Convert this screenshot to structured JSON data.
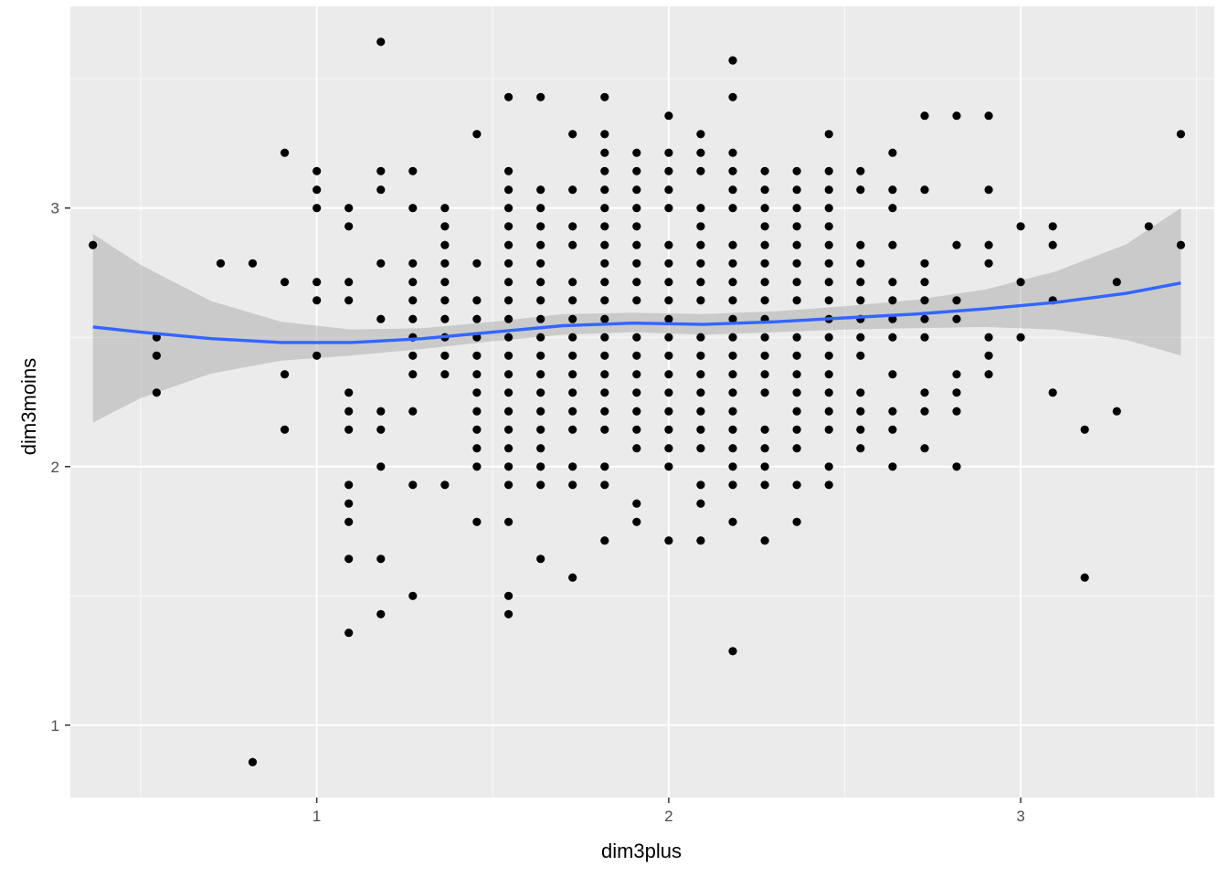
{
  "chart_data": {
    "type": "scatter",
    "title": "",
    "xlabel": "dim3plus",
    "ylabel": "dim3moins",
    "xlim": [
      0.3,
      3.55
    ],
    "ylim": [
      0.72,
      3.78
    ],
    "x_ticks": [
      1,
      2,
      3
    ],
    "y_ticks": [
      1,
      2,
      3
    ],
    "x_tick_labels": [
      "1",
      "2",
      "3"
    ],
    "y_tick_labels": [
      "1",
      "2",
      "3"
    ],
    "grid": true,
    "legend": "none",
    "colors": {
      "panel": "#ebebeb",
      "grid_major": "#ffffff",
      "grid_minor": "#f7f7f7",
      "point": "#000000",
      "smooth_line": "#3366ff",
      "ribbon": "#999999"
    },
    "points": [
      [
        0.364,
        2.857
      ],
      [
        0.545,
        2.5
      ],
      [
        0.545,
        2.429
      ],
      [
        0.545,
        2.286
      ],
      [
        0.727,
        2.786
      ],
      [
        0.818,
        2.786
      ],
      [
        0.818,
        0.857
      ],
      [
        0.909,
        3.214
      ],
      [
        0.909,
        2.714
      ],
      [
        0.909,
        2.357
      ],
      [
        0.909,
        2.143
      ],
      [
        1.0,
        3.143
      ],
      [
        1.0,
        3.071
      ],
      [
        1.0,
        3.0
      ],
      [
        1.0,
        2.714
      ],
      [
        1.0,
        2.643
      ],
      [
        1.0,
        2.429
      ],
      [
        1.091,
        3.0
      ],
      [
        1.091,
        2.929
      ],
      [
        1.091,
        2.714
      ],
      [
        1.091,
        2.643
      ],
      [
        1.091,
        2.286
      ],
      [
        1.091,
        2.214
      ],
      [
        1.091,
        2.143
      ],
      [
        1.091,
        1.929
      ],
      [
        1.091,
        1.857
      ],
      [
        1.091,
        1.786
      ],
      [
        1.091,
        1.643
      ],
      [
        1.091,
        1.357
      ],
      [
        1.182,
        3.643
      ],
      [
        1.182,
        3.143
      ],
      [
        1.182,
        3.071
      ],
      [
        1.182,
        2.786
      ],
      [
        1.182,
        2.571
      ],
      [
        1.182,
        2.214
      ],
      [
        1.182,
        2.143
      ],
      [
        1.182,
        2.0
      ],
      [
        1.182,
        1.643
      ],
      [
        1.182,
        1.429
      ],
      [
        1.273,
        3.143
      ],
      [
        1.273,
        3.0
      ],
      [
        1.273,
        2.786
      ],
      [
        1.273,
        2.714
      ],
      [
        1.273,
        2.643
      ],
      [
        1.273,
        2.571
      ],
      [
        1.273,
        2.5
      ],
      [
        1.273,
        2.429
      ],
      [
        1.273,
        2.357
      ],
      [
        1.273,
        2.214
      ],
      [
        1.273,
        1.929
      ],
      [
        1.273,
        1.5
      ],
      [
        1.364,
        3.0
      ],
      [
        1.364,
        2.929
      ],
      [
        1.364,
        2.857
      ],
      [
        1.364,
        2.786
      ],
      [
        1.364,
        2.714
      ],
      [
        1.364,
        2.643
      ],
      [
        1.364,
        2.571
      ],
      [
        1.364,
        2.5
      ],
      [
        1.364,
        2.429
      ],
      [
        1.364,
        2.357
      ],
      [
        1.364,
        1.929
      ],
      [
        1.455,
        3.286
      ],
      [
        1.455,
        2.786
      ],
      [
        1.455,
        2.643
      ],
      [
        1.455,
        2.571
      ],
      [
        1.455,
        2.5
      ],
      [
        1.455,
        2.429
      ],
      [
        1.455,
        2.357
      ],
      [
        1.455,
        2.286
      ],
      [
        1.455,
        2.214
      ],
      [
        1.455,
        2.143
      ],
      [
        1.455,
        2.071
      ],
      [
        1.455,
        2.0
      ],
      [
        1.455,
        1.786
      ],
      [
        1.545,
        3.429
      ],
      [
        1.545,
        3.143
      ],
      [
        1.545,
        3.071
      ],
      [
        1.545,
        3.0
      ],
      [
        1.545,
        2.929
      ],
      [
        1.545,
        2.857
      ],
      [
        1.545,
        2.786
      ],
      [
        1.545,
        2.714
      ],
      [
        1.545,
        2.643
      ],
      [
        1.545,
        2.571
      ],
      [
        1.545,
        2.5
      ],
      [
        1.545,
        2.429
      ],
      [
        1.545,
        2.357
      ],
      [
        1.545,
        2.286
      ],
      [
        1.545,
        2.214
      ],
      [
        1.545,
        2.143
      ],
      [
        1.545,
        2.071
      ],
      [
        1.545,
        2.0
      ],
      [
        1.545,
        1.929
      ],
      [
        1.545,
        1.786
      ],
      [
        1.545,
        1.5
      ],
      [
        1.545,
        1.429
      ],
      [
        1.636,
        3.429
      ],
      [
        1.636,
        3.071
      ],
      [
        1.636,
        3.0
      ],
      [
        1.636,
        2.929
      ],
      [
        1.636,
        2.857
      ],
      [
        1.636,
        2.786
      ],
      [
        1.636,
        2.714
      ],
      [
        1.636,
        2.643
      ],
      [
        1.636,
        2.571
      ],
      [
        1.636,
        2.5
      ],
      [
        1.636,
        2.429
      ],
      [
        1.636,
        2.357
      ],
      [
        1.636,
        2.286
      ],
      [
        1.636,
        2.214
      ],
      [
        1.636,
        2.143
      ],
      [
        1.636,
        2.071
      ],
      [
        1.636,
        2.0
      ],
      [
        1.636,
        1.929
      ],
      [
        1.636,
        1.643
      ],
      [
        1.727,
        3.286
      ],
      [
        1.727,
        3.071
      ],
      [
        1.727,
        2.929
      ],
      [
        1.727,
        2.857
      ],
      [
        1.727,
        2.714
      ],
      [
        1.727,
        2.643
      ],
      [
        1.727,
        2.571
      ],
      [
        1.727,
        2.5
      ],
      [
        1.727,
        2.429
      ],
      [
        1.727,
        2.357
      ],
      [
        1.727,
        2.286
      ],
      [
        1.727,
        2.214
      ],
      [
        1.727,
        2.143
      ],
      [
        1.727,
        2.0
      ],
      [
        1.727,
        1.929
      ],
      [
        1.727,
        1.571
      ],
      [
        1.818,
        3.429
      ],
      [
        1.818,
        3.286
      ],
      [
        1.818,
        3.214
      ],
      [
        1.818,
        3.143
      ],
      [
        1.818,
        3.071
      ],
      [
        1.818,
        3.0
      ],
      [
        1.818,
        2.929
      ],
      [
        1.818,
        2.857
      ],
      [
        1.818,
        2.786
      ],
      [
        1.818,
        2.714
      ],
      [
        1.818,
        2.643
      ],
      [
        1.818,
        2.571
      ],
      [
        1.818,
        2.5
      ],
      [
        1.818,
        2.429
      ],
      [
        1.818,
        2.357
      ],
      [
        1.818,
        2.286
      ],
      [
        1.818,
        2.214
      ],
      [
        1.818,
        2.143
      ],
      [
        1.818,
        2.0
      ],
      [
        1.818,
        1.929
      ],
      [
        1.818,
        1.714
      ],
      [
        1.909,
        3.214
      ],
      [
        1.909,
        3.143
      ],
      [
        1.909,
        3.071
      ],
      [
        1.909,
        3.0
      ],
      [
        1.909,
        2.929
      ],
      [
        1.909,
        2.857
      ],
      [
        1.909,
        2.786
      ],
      [
        1.909,
        2.714
      ],
      [
        1.909,
        2.643
      ],
      [
        1.909,
        2.5
      ],
      [
        1.909,
        2.429
      ],
      [
        1.909,
        2.357
      ],
      [
        1.909,
        2.286
      ],
      [
        1.909,
        2.214
      ],
      [
        1.909,
        2.143
      ],
      [
        1.909,
        2.071
      ],
      [
        1.909,
        1.857
      ],
      [
        1.909,
        1.786
      ],
      [
        2.0,
        3.357
      ],
      [
        2.0,
        3.214
      ],
      [
        2.0,
        3.143
      ],
      [
        2.0,
        3.071
      ],
      [
        2.0,
        3.0
      ],
      [
        2.0,
        2.857
      ],
      [
        2.0,
        2.786
      ],
      [
        2.0,
        2.714
      ],
      [
        2.0,
        2.643
      ],
      [
        2.0,
        2.571
      ],
      [
        2.0,
        2.5
      ],
      [
        2.0,
        2.429
      ],
      [
        2.0,
        2.357
      ],
      [
        2.0,
        2.286
      ],
      [
        2.0,
        2.214
      ],
      [
        2.0,
        2.143
      ],
      [
        2.0,
        2.071
      ],
      [
        2.0,
        2.0
      ],
      [
        2.0,
        1.714
      ],
      [
        2.091,
        3.286
      ],
      [
        2.091,
        3.214
      ],
      [
        2.091,
        3.143
      ],
      [
        2.091,
        3.0
      ],
      [
        2.091,
        2.929
      ],
      [
        2.091,
        2.857
      ],
      [
        2.091,
        2.786
      ],
      [
        2.091,
        2.714
      ],
      [
        2.091,
        2.643
      ],
      [
        2.091,
        2.5
      ],
      [
        2.091,
        2.429
      ],
      [
        2.091,
        2.357
      ],
      [
        2.091,
        2.286
      ],
      [
        2.091,
        2.214
      ],
      [
        2.091,
        2.143
      ],
      [
        2.091,
        2.071
      ],
      [
        2.091,
        1.929
      ],
      [
        2.091,
        1.857
      ],
      [
        2.091,
        1.714
      ],
      [
        2.182,
        3.571
      ],
      [
        2.182,
        3.429
      ],
      [
        2.182,
        3.214
      ],
      [
        2.182,
        3.143
      ],
      [
        2.182,
        3.071
      ],
      [
        2.182,
        3.0
      ],
      [
        2.182,
        2.857
      ],
      [
        2.182,
        2.786
      ],
      [
        2.182,
        2.714
      ],
      [
        2.182,
        2.643
      ],
      [
        2.182,
        2.571
      ],
      [
        2.182,
        2.5
      ],
      [
        2.182,
        2.429
      ],
      [
        2.182,
        2.357
      ],
      [
        2.182,
        2.286
      ],
      [
        2.182,
        2.214
      ],
      [
        2.182,
        2.143
      ],
      [
        2.182,
        2.071
      ],
      [
        2.182,
        2.0
      ],
      [
        2.182,
        1.929
      ],
      [
        2.182,
        1.786
      ],
      [
        2.182,
        1.286
      ],
      [
        2.273,
        3.143
      ],
      [
        2.273,
        3.071
      ],
      [
        2.273,
        3.0
      ],
      [
        2.273,
        2.929
      ],
      [
        2.273,
        2.857
      ],
      [
        2.273,
        2.786
      ],
      [
        2.273,
        2.714
      ],
      [
        2.273,
        2.643
      ],
      [
        2.273,
        2.571
      ],
      [
        2.273,
        2.5
      ],
      [
        2.273,
        2.429
      ],
      [
        2.273,
        2.357
      ],
      [
        2.273,
        2.286
      ],
      [
        2.273,
        2.143
      ],
      [
        2.273,
        2.071
      ],
      [
        2.273,
        2.0
      ],
      [
        2.273,
        1.929
      ],
      [
        2.273,
        1.714
      ],
      [
        2.364,
        3.143
      ],
      [
        2.364,
        3.071
      ],
      [
        2.364,
        3.0
      ],
      [
        2.364,
        2.929
      ],
      [
        2.364,
        2.857
      ],
      [
        2.364,
        2.786
      ],
      [
        2.364,
        2.714
      ],
      [
        2.364,
        2.643
      ],
      [
        2.364,
        2.5
      ],
      [
        2.364,
        2.429
      ],
      [
        2.364,
        2.357
      ],
      [
        2.364,
        2.286
      ],
      [
        2.364,
        2.214
      ],
      [
        2.364,
        2.143
      ],
      [
        2.364,
        2.071
      ],
      [
        2.364,
        1.929
      ],
      [
        2.364,
        1.786
      ],
      [
        2.455,
        3.286
      ],
      [
        2.455,
        3.143
      ],
      [
        2.455,
        3.071
      ],
      [
        2.455,
        3.0
      ],
      [
        2.455,
        2.929
      ],
      [
        2.455,
        2.857
      ],
      [
        2.455,
        2.786
      ],
      [
        2.455,
        2.714
      ],
      [
        2.455,
        2.643
      ],
      [
        2.455,
        2.571
      ],
      [
        2.455,
        2.5
      ],
      [
        2.455,
        2.429
      ],
      [
        2.455,
        2.357
      ],
      [
        2.455,
        2.286
      ],
      [
        2.455,
        2.214
      ],
      [
        2.455,
        2.143
      ],
      [
        2.455,
        2.0
      ],
      [
        2.455,
        1.929
      ],
      [
        2.545,
        3.143
      ],
      [
        2.545,
        3.071
      ],
      [
        2.545,
        2.857
      ],
      [
        2.545,
        2.786
      ],
      [
        2.545,
        2.714
      ],
      [
        2.545,
        2.643
      ],
      [
        2.545,
        2.571
      ],
      [
        2.545,
        2.5
      ],
      [
        2.545,
        2.429
      ],
      [
        2.545,
        2.286
      ],
      [
        2.545,
        2.214
      ],
      [
        2.545,
        2.143
      ],
      [
        2.545,
        2.071
      ],
      [
        2.636,
        3.214
      ],
      [
        2.636,
        3.071
      ],
      [
        2.636,
        3.0
      ],
      [
        2.636,
        2.857
      ],
      [
        2.636,
        2.714
      ],
      [
        2.636,
        2.643
      ],
      [
        2.636,
        2.571
      ],
      [
        2.636,
        2.5
      ],
      [
        2.636,
        2.357
      ],
      [
        2.636,
        2.214
      ],
      [
        2.636,
        2.143
      ],
      [
        2.636,
        2.0
      ],
      [
        2.727,
        3.357
      ],
      [
        2.727,
        3.071
      ],
      [
        2.727,
        2.786
      ],
      [
        2.727,
        2.714
      ],
      [
        2.727,
        2.643
      ],
      [
        2.727,
        2.571
      ],
      [
        2.727,
        2.5
      ],
      [
        2.727,
        2.286
      ],
      [
        2.727,
        2.214
      ],
      [
        2.727,
        2.071
      ],
      [
        2.818,
        3.357
      ],
      [
        2.818,
        2.857
      ],
      [
        2.818,
        2.643
      ],
      [
        2.818,
        2.571
      ],
      [
        2.818,
        2.357
      ],
      [
        2.818,
        2.286
      ],
      [
        2.818,
        2.214
      ],
      [
        2.818,
        2.0
      ],
      [
        2.909,
        3.357
      ],
      [
        2.909,
        3.071
      ],
      [
        2.909,
        2.857
      ],
      [
        2.909,
        2.786
      ],
      [
        2.909,
        2.5
      ],
      [
        2.909,
        2.429
      ],
      [
        2.909,
        2.357
      ],
      [
        3.0,
        2.929
      ],
      [
        3.0,
        2.714
      ],
      [
        3.0,
        2.5
      ],
      [
        3.091,
        2.929
      ],
      [
        3.091,
        2.857
      ],
      [
        3.091,
        2.643
      ],
      [
        3.091,
        2.286
      ],
      [
        3.182,
        2.143
      ],
      [
        3.182,
        1.571
      ],
      [
        3.273,
        2.714
      ],
      [
        3.273,
        2.214
      ],
      [
        3.364,
        2.929
      ],
      [
        3.455,
        3.286
      ],
      [
        3.455,
        2.857
      ]
    ],
    "smooth_x": [
      0.364,
      0.5,
      0.7,
      0.9,
      1.1,
      1.3,
      1.5,
      1.7,
      1.9,
      2.1,
      2.3,
      2.5,
      2.7,
      2.9,
      3.1,
      3.3,
      3.455
    ],
    "smooth_y": [
      2.54,
      2.52,
      2.495,
      2.48,
      2.48,
      2.495,
      2.52,
      2.545,
      2.555,
      2.55,
      2.56,
      2.575,
      2.59,
      2.61,
      2.635,
      2.67,
      2.71
    ],
    "ribbon_lower": [
      2.17,
      2.265,
      2.36,
      2.41,
      2.43,
      2.455,
      2.485,
      2.51,
      2.52,
      2.51,
      2.52,
      2.53,
      2.535,
      2.54,
      2.53,
      2.49,
      2.43
    ],
    "ribbon_upper": [
      2.9,
      2.78,
      2.64,
      2.56,
      2.53,
      2.535,
      2.56,
      2.59,
      2.595,
      2.59,
      2.6,
      2.62,
      2.645,
      2.685,
      2.755,
      2.86,
      3.0
    ]
  }
}
